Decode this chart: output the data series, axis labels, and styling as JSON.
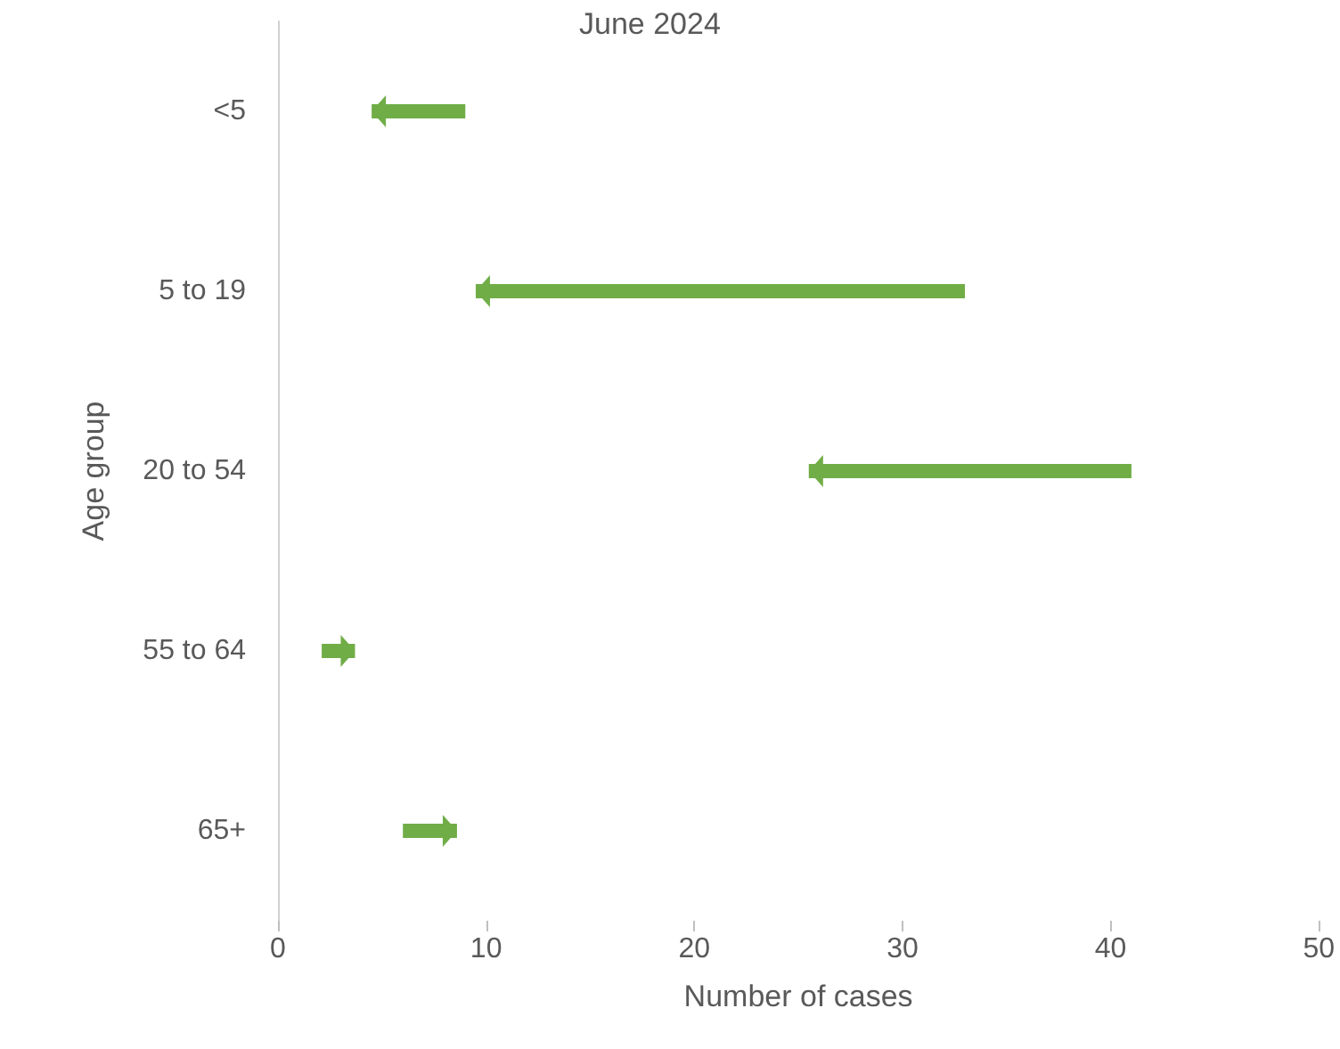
{
  "chart_data": {
    "type": "bar",
    "orientation": "horizontal",
    "title": "June 2024",
    "xlabel": "Number of cases",
    "ylabel": "Age group",
    "categories": [
      "<5",
      "5 to 19",
      "20 to 54",
      "55 to 64",
      "65+"
    ],
    "base": [
      9,
      33,
      41,
      2.1,
      6
    ],
    "values": [
      -4.5,
      -23.5,
      -15.5,
      1.6,
      2.6
    ],
    "color": "#70ad47",
    "xlim": [
      0,
      50
    ],
    "xticks": [
      0,
      10,
      20,
      30,
      40,
      50
    ],
    "grid": false
  }
}
